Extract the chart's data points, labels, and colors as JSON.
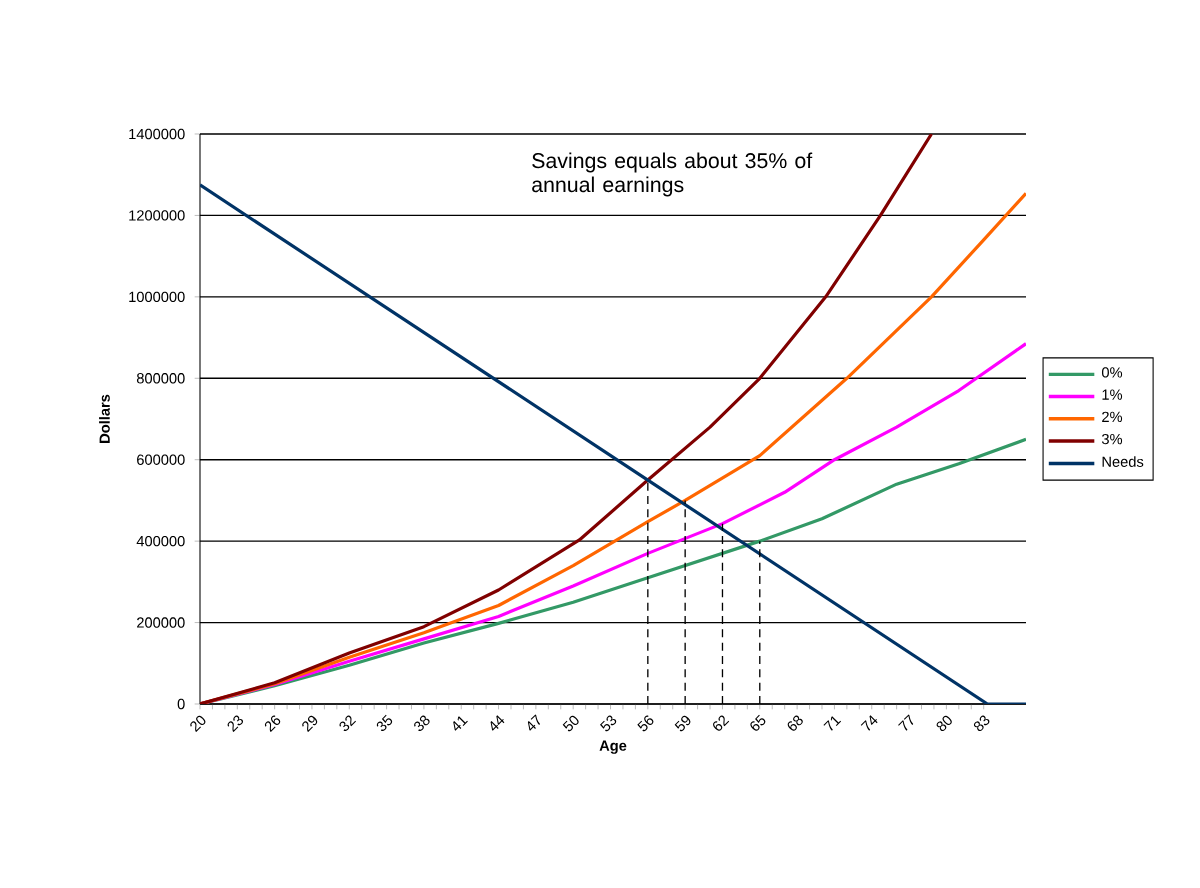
{
  "chart_data": {
    "type": "line",
    "xlabel": "Age",
    "ylabel": "Dollars",
    "xlim": [
      20,
      86.4
    ],
    "xticks": [
      20,
      23,
      26,
      29,
      32,
      35,
      38,
      41,
      44,
      47,
      50,
      53,
      56,
      59,
      62,
      65,
      68,
      71,
      74,
      77,
      80,
      83
    ],
    "ylim": [
      0,
      1400000
    ],
    "yticks": [
      0,
      200000,
      400000,
      600000,
      800000,
      1000000,
      1200000,
      1400000
    ],
    "grid": "y",
    "legend": "right",
    "annotations": [
      "Savings equals about 35% of annual earnings"
    ],
    "series": [
      {
        "name": "0%",
        "color": "#339966",
        "x": [
          20,
          26,
          32,
          38,
          44,
          50,
          56,
          65,
          70,
          76,
          81,
          86.4
        ],
        "values": [
          0,
          45000,
          95000,
          150000,
          198000,
          250000,
          310000,
          400000,
          455000,
          540000,
          590000,
          650000
        ]
      },
      {
        "name": "1%",
        "color": "#ff00ff",
        "x": [
          20,
          26,
          32,
          38,
          44,
          50,
          56,
          62,
          67,
          71,
          76,
          81,
          86.4
        ],
        "values": [
          0,
          48000,
          105000,
          160000,
          215000,
          290000,
          370000,
          443000,
          520000,
          600000,
          680000,
          770000,
          885000
        ]
      },
      {
        "name": "2%",
        "color": "#ff6600",
        "x": [
          20,
          26,
          32,
          38,
          44,
          50,
          56,
          59,
          65,
          72,
          78.8,
          83,
          86.4
        ],
        "values": [
          0,
          50000,
          115000,
          175000,
          242000,
          340000,
          448000,
          500000,
          610000,
          800000,
          1000000,
          1140000,
          1254000
        ]
      },
      {
        "name": "3%",
        "color": "#800000",
        "x": [
          20,
          26,
          32,
          38,
          44,
          50.5,
          56,
          61,
          65,
          70.3,
          74.7,
          78.8
        ],
        "values": [
          0,
          52000,
          125000,
          190000,
          280000,
          403000,
          550000,
          680000,
          800000,
          1000000,
          1200000,
          1400000
        ]
      },
      {
        "name": "Needs",
        "color": "#003366",
        "x": [
          20,
          56,
          83.3,
          86.4
        ],
        "values": [
          1275000,
          550000,
          0,
          0
        ]
      },
      {
        "color": "#000000",
        "line_style": "dashed",
        "x": [
          56,
          56
        ],
        "values": [
          0,
          550000
        ]
      },
      {
        "color": "#000000",
        "line_style": "dashed",
        "x": [
          59,
          59
        ],
        "values": [
          0,
          500000
        ]
      },
      {
        "color": "#000000",
        "line_style": "dashed",
        "x": [
          62,
          62
        ],
        "values": [
          0,
          443000
        ]
      },
      {
        "color": "#000000",
        "line_style": "dashed",
        "x": [
          65,
          65
        ],
        "values": [
          0,
          400000
        ]
      }
    ]
  }
}
